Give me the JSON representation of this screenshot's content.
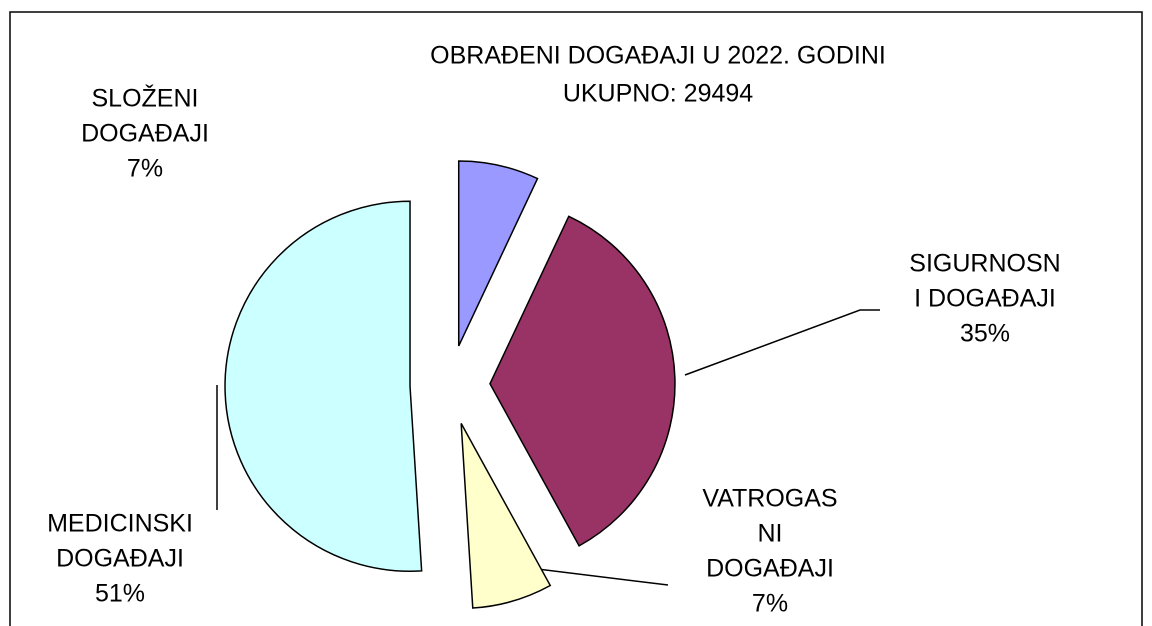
{
  "chart_data": {
    "type": "pie",
    "title": "OBRAĐENI DOGAĐAJI U 2022. GODINI",
    "subtitle": "UKUPNO: 29494",
    "categories": [
      [
        "SLOŽENI",
        "DOGAĐAJI"
      ],
      [
        "SIGURNOSN",
        "I DOGAĐAJI"
      ],
      [
        "VATROGAS",
        "NI",
        "DOGAĐAJI"
      ],
      [
        "MEDICINSKI",
        "DOGAĐAJI"
      ]
    ],
    "values": [
      7,
      35,
      7,
      51
    ],
    "value_labels": [
      "7%",
      "35%",
      "7%",
      "51%"
    ],
    "colors": [
      "#9999ff",
      "#993366",
      "#ffffcc",
      "#ccffff"
    ],
    "exploded": true
  }
}
